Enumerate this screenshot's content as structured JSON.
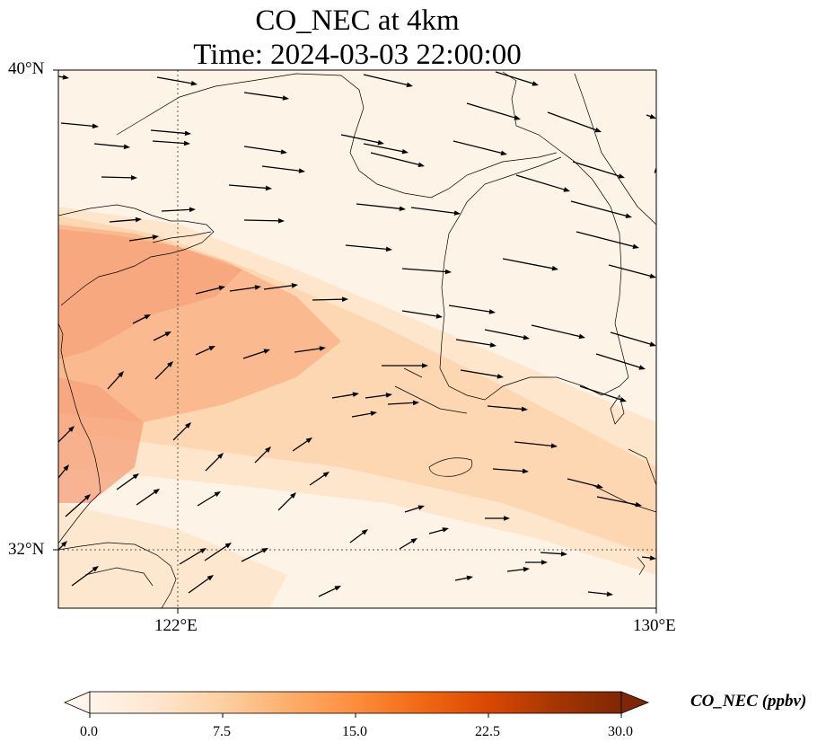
{
  "title": {
    "line1": "CO_NEC at 4km",
    "line2": "Time: 2024-03-03 22:00:00"
  },
  "axes": {
    "lat_ticks": [
      "40°N",
      "32°N"
    ],
    "lon_ticks": [
      "122°E",
      "130°E"
    ]
  },
  "colorbar": {
    "label": "CO_NEC (ppbv)",
    "ticks": [
      "0.0",
      "7.5",
      "15.0",
      "22.5",
      "30.0"
    ],
    "colors": [
      "#fff5eb",
      "#fee6ce",
      "#fdd0a2",
      "#fdae6b",
      "#fd8d3c",
      "#f16913",
      "#d94801",
      "#a63603",
      "#7f2704"
    ]
  },
  "map_colors": {
    "land": "#fdf3e6",
    "plume": "#f7a07a",
    "coast": "#000000",
    "grid": "#555555"
  }
}
